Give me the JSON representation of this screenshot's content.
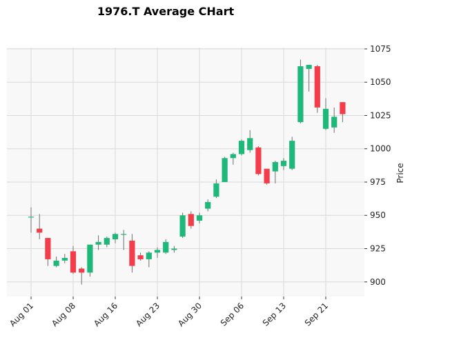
{
  "chart_data": {
    "type": "candlestick",
    "title": "1976.T Average CHart",
    "ylabel": "Price",
    "xlabel": "",
    "ylim": [
      889,
      1076
    ],
    "y_ticks": [
      900,
      925,
      950,
      975,
      1000,
      1025,
      1050,
      1075
    ],
    "x_tick_labels": [
      {
        "label": "Aug 01",
        "index": 0
      },
      {
        "label": "Aug 08",
        "index": 5
      },
      {
        "label": "Aug 16",
        "index": 10
      },
      {
        "label": "Aug 23",
        "index": 15
      },
      {
        "label": "Aug 30",
        "index": 20
      },
      {
        "label": "Sep 06",
        "index": 25
      },
      {
        "label": "Sep 13",
        "index": 30
      },
      {
        "label": "Sep 21",
        "index": 35
      }
    ],
    "colors": {
      "up": "#1db87a",
      "down": "#f33d4a",
      "wick": "#6e6e6e",
      "grid": "#d9d9d9",
      "background": "#f8f8f8"
    },
    "candles": [
      {
        "o": 949,
        "h": 956,
        "l": 937,
        "c": 949
      },
      {
        "o": 940,
        "h": 951,
        "l": 932,
        "c": 937
      },
      {
        "o": 933,
        "h": 933,
        "l": 912,
        "c": 917
      },
      {
        "o": 912,
        "h": 919,
        "l": 911,
        "c": 916
      },
      {
        "o": 916,
        "h": 921,
        "l": 914,
        "c": 918
      },
      {
        "o": 923,
        "h": 927,
        "l": 906,
        "c": 907
      },
      {
        "o": 910,
        "h": 911,
        "l": 898,
        "c": 907
      },
      {
        "o": 907,
        "h": 928,
        "l": 904,
        "c": 928
      },
      {
        "o": 928,
        "h": 935,
        "l": 924,
        "c": 930
      },
      {
        "o": 928,
        "h": 934,
        "l": 926,
        "c": 933
      },
      {
        "o": 932,
        "h": 937,
        "l": 929,
        "c": 936
      },
      {
        "o": 936,
        "h": 939,
        "l": 924,
        "c": 936
      },
      {
        "o": 931,
        "h": 936,
        "l": 907,
        "c": 912
      },
      {
        "o": 920,
        "h": 922,
        "l": 916,
        "c": 917
      },
      {
        "o": 917,
        "h": 923,
        "l": 911,
        "c": 922
      },
      {
        "o": 922,
        "h": 926,
        "l": 918,
        "c": 924
      },
      {
        "o": 922,
        "h": 932,
        "l": 921,
        "c": 930
      },
      {
        "o": 924,
        "h": 927,
        "l": 922,
        "c": 925
      },
      {
        "o": 934,
        "h": 952,
        "l": 933,
        "c": 950
      },
      {
        "o": 951,
        "h": 953,
        "l": 940,
        "c": 942
      },
      {
        "o": 946,
        "h": 952,
        "l": 944,
        "c": 950
      },
      {
        "o": 955,
        "h": 962,
        "l": 953,
        "c": 960
      },
      {
        "o": 964,
        "h": 977,
        "l": 963,
        "c": 974
      },
      {
        "o": 975,
        "h": 994,
        "l": 975,
        "c": 993
      },
      {
        "o": 993,
        "h": 997,
        "l": 988,
        "c": 996
      },
      {
        "o": 996,
        "h": 1007,
        "l": 995,
        "c": 1006
      },
      {
        "o": 999,
        "h": 1014,
        "l": 997,
        "c": 1008
      },
      {
        "o": 1001,
        "h": 1002,
        "l": 980,
        "c": 981
      },
      {
        "o": 985,
        "h": 985,
        "l": 973,
        "c": 974
      },
      {
        "o": 983,
        "h": 991,
        "l": 974,
        "c": 990
      },
      {
        "o": 987,
        "h": 993,
        "l": 984,
        "c": 991
      },
      {
        "o": 985,
        "h": 1009,
        "l": 984,
        "c": 1006
      },
      {
        "o": 1020,
        "h": 1067,
        "l": 1019,
        "c": 1062
      },
      {
        "o": 1060,
        "h": 1063,
        "l": 1043,
        "c": 1063
      },
      {
        "o": 1062,
        "h": 1063,
        "l": 1027,
        "c": 1031
      },
      {
        "o": 1015,
        "h": 1038,
        "l": 1014,
        "c": 1030
      },
      {
        "o": 1016,
        "h": 1031,
        "l": 1012,
        "c": 1024
      },
      {
        "o": 1035,
        "h": 1035,
        "l": 1020,
        "c": 1026
      }
    ]
  }
}
